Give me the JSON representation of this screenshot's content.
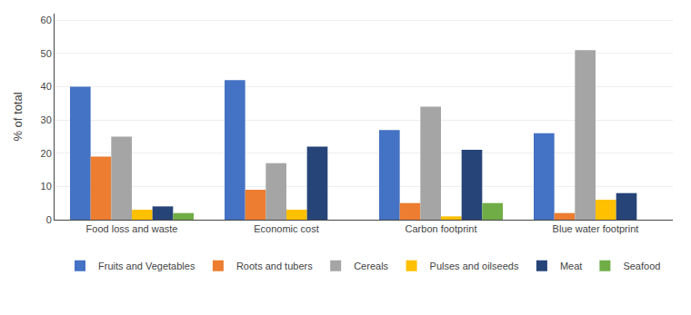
{
  "chart_data": {
    "type": "bar",
    "categories": [
      "Food loss and waste",
      "Economic cost",
      "Carbon footprint",
      "Blue water footprint"
    ],
    "series": [
      {
        "name": "Fruits and Vegetables",
        "color": "#4472C4",
        "values": [
          40,
          42,
          27,
          26
        ]
      },
      {
        "name": "Roots and tubers",
        "color": "#ED7D31",
        "values": [
          19,
          9,
          5,
          2
        ]
      },
      {
        "name": "Cereals",
        "color": "#A5A5A5",
        "values": [
          25,
          17,
          34,
          51
        ]
      },
      {
        "name": "Pulses and oilseeds",
        "color": "#FFC000",
        "values": [
          3,
          3,
          1,
          6
        ]
      },
      {
        "name": "Meat",
        "color": "#264478",
        "values": [
          4,
          22,
          21,
          8
        ]
      },
      {
        "name": "Seafood",
        "color": "#70AD47",
        "values": [
          2,
          0,
          5,
          0
        ]
      }
    ],
    "ylabel": "% of total",
    "ylim": [
      0,
      62
    ],
    "yticks": [
      0,
      10,
      20,
      30,
      40,
      50,
      60
    ],
    "grid": true,
    "legend": "bottom"
  }
}
